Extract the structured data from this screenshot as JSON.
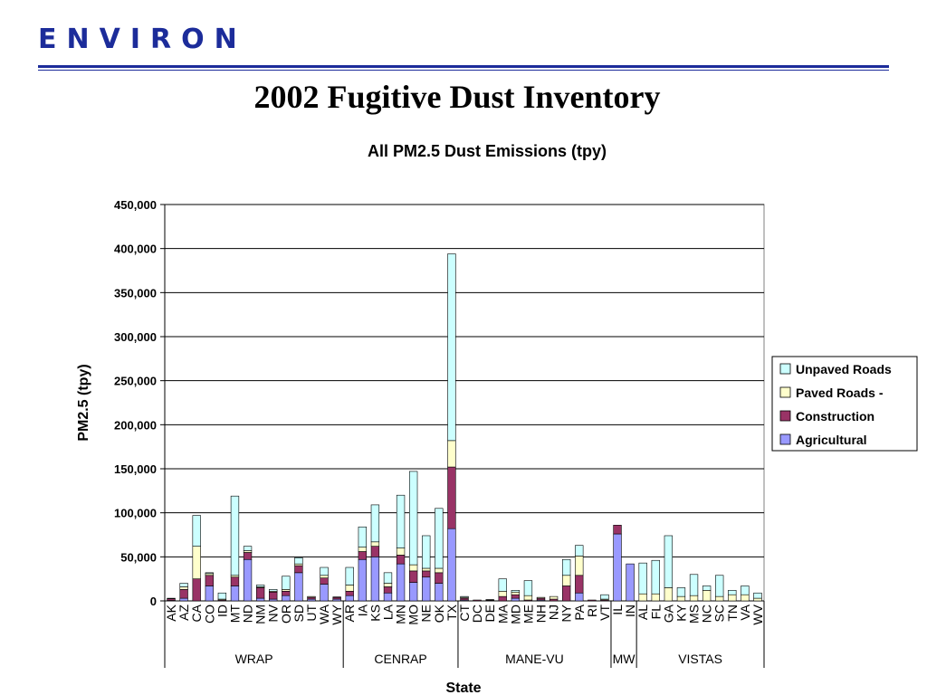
{
  "logo": {
    "text": "ENVIRON",
    "color": "#1c2c9a"
  },
  "slide": {
    "title": "2002 Fugitive Dust Inventory"
  },
  "chart_data": {
    "type": "bar",
    "stacked": true,
    "title": "All PM2.5 Dust Emissions (tpy)",
    "xlabel": "State",
    "ylabel": "PM2.5 (tpy)",
    "ylim": [
      0,
      450000
    ],
    "yticks": [
      0,
      50000,
      100000,
      150000,
      200000,
      250000,
      300000,
      350000,
      400000,
      450000
    ],
    "ytick_labels": [
      "0",
      "50,000",
      "100,000",
      "150,000",
      "200,000",
      "250,000",
      "300,000",
      "350,000",
      "400,000",
      "450,000"
    ],
    "grid": true,
    "legend": "right",
    "categories": [
      "AK",
      "AZ",
      "CA",
      "CO",
      "ID",
      "MT",
      "ND",
      "NM",
      "NV",
      "OR",
      "SD",
      "UT",
      "WA",
      "WY",
      "AR",
      "IA",
      "KS",
      "LA",
      "MN",
      "MO",
      "NE",
      "OK",
      "TX",
      "CT",
      "DC",
      "DE",
      "MA",
      "MD",
      "ME",
      "NH",
      "NJ",
      "NY",
      "PA",
      "RI",
      "VT",
      "IL",
      "IN",
      "AL",
      "FL",
      "GA",
      "KY",
      "MS",
      "NC",
      "SC",
      "TN",
      "VA",
      "WV"
    ],
    "groups": [
      {
        "label": "WRAP",
        "count": 14
      },
      {
        "label": "CENRAP",
        "count": 9
      },
      {
        "label": "MANE-VU",
        "count": 12
      },
      {
        "label": "MW",
        "count": 2
      },
      {
        "label": "VISTAS",
        "count": 10
      }
    ],
    "series": [
      {
        "name": "Agricultural",
        "color": "#9999ff",
        "values": [
          500,
          3000,
          0,
          17000,
          0,
          17000,
          47000,
          3000,
          2000,
          6000,
          32000,
          2000,
          19000,
          2000,
          6000,
          47000,
          50000,
          9000,
          42000,
          21000,
          27000,
          20000,
          82000,
          1000,
          0,
          500,
          0,
          3000,
          0,
          1000,
          0,
          0,
          9000,
          0,
          0,
          76000,
          42000,
          0,
          0,
          0,
          0,
          0,
          0,
          0,
          0,
          0,
          0
        ]
      },
      {
        "name": "Construction",
        "color": "#993366",
        "values": [
          2000,
          10000,
          25000,
          12000,
          1000,
          10000,
          8000,
          12000,
          8000,
          5000,
          8000,
          2000,
          7000,
          2000,
          5000,
          9000,
          12000,
          7000,
          10000,
          13000,
          7000,
          12000,
          70000,
          2000,
          1000,
          500,
          5000,
          4000,
          1000,
          2000,
          2000,
          17000,
          20000,
          1000,
          1000,
          10000,
          0,
          0,
          0,
          0,
          0,
          0,
          0,
          0,
          0,
          0,
          0
        ]
      },
      {
        "name": "Paved Roads -",
        "color": "#ffffcc",
        "values": [
          500,
          3000,
          37000,
          2000,
          1000,
          2000,
          2000,
          1000,
          1000,
          2000,
          2000,
          1000,
          3000,
          500,
          7000,
          5000,
          5000,
          4000,
          8000,
          7000,
          3000,
          5000,
          30000,
          1000,
          0,
          500,
          6000,
          3000,
          5000,
          1000,
          3000,
          12000,
          22000,
          0,
          1000,
          0,
          0,
          8000,
          8000,
          15000,
          5000,
          6000,
          12000,
          5000,
          7000,
          7000,
          3000
        ]
      },
      {
        "name": "Unpaved Roads",
        "color": "#ccffff",
        "values": [
          0,
          4000,
          35000,
          1000,
          7000,
          90000,
          5000,
          2000,
          2000,
          15000,
          7000,
          0,
          9000,
          0,
          20000,
          23000,
          42000,
          12000,
          60000,
          106000,
          37000,
          68000,
          212000,
          1000,
          0,
          0,
          14000,
          2000,
          17000,
          0,
          0,
          18000,
          12000,
          0,
          5000,
          0,
          0,
          35000,
          38000,
          59000,
          10000,
          24000,
          5000,
          24000,
          5000,
          10000,
          6000
        ]
      }
    ]
  }
}
